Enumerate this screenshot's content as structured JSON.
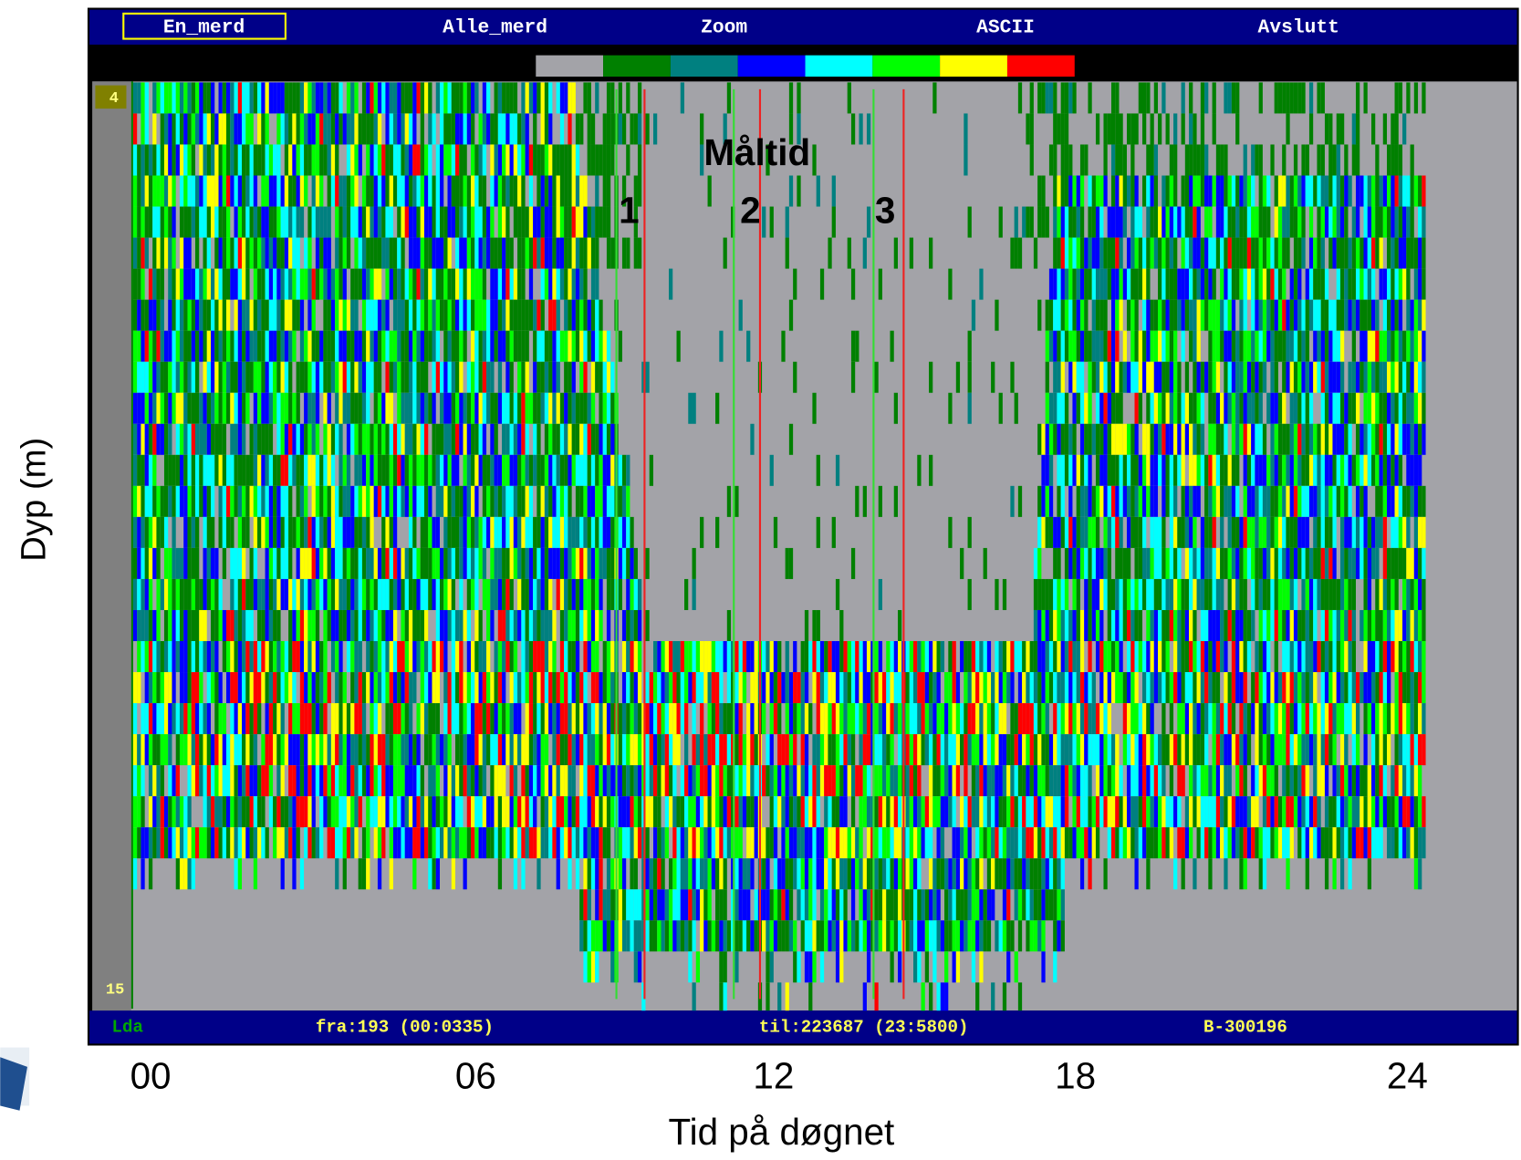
{
  "menu": {
    "items": [
      "En_merd",
      "Alle_merd",
      "Zoom",
      "ASCII",
      "Avslutt"
    ],
    "selected_index": 0
  },
  "color_scale": [
    "#a3a3a8",
    "#008000",
    "#008080",
    "#0000ff",
    "#00ffff",
    "#00ff00",
    "#ffff00",
    "#ff0000"
  ],
  "depth_axis": {
    "top": "4",
    "bottom": "15"
  },
  "annotations": {
    "title": "Måltid",
    "meals": [
      "1",
      "2",
      "3"
    ]
  },
  "status_bar": {
    "channel": "Lda",
    "from": "fra:193 (00:0335)",
    "to": "til:223687 (23:5800)",
    "id": "B-300196"
  },
  "x_axis": {
    "label": "Tid på døgnet",
    "ticks": [
      "00",
      "06",
      "12",
      "18",
      "24"
    ]
  },
  "y_axis": {
    "label": "Dyp (m)"
  }
}
